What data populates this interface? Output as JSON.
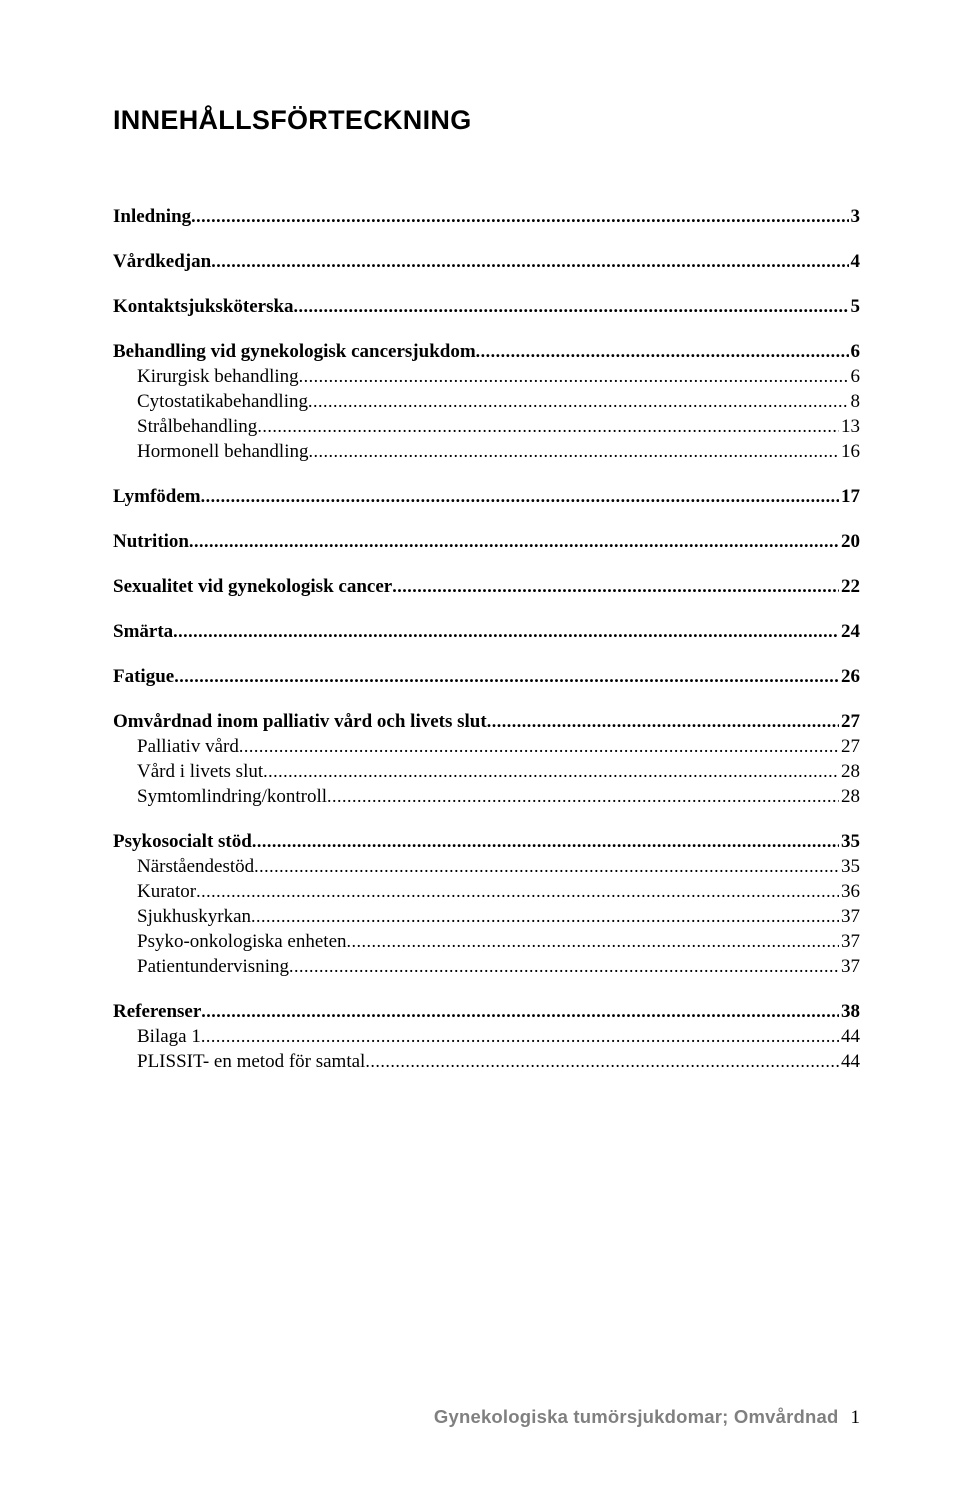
{
  "title": "INNEHÅLLSFÖRTECKNING",
  "toc": [
    {
      "level": 1,
      "label": "Inledning",
      "page": "3"
    },
    {
      "level": 1,
      "label": "Vårdkedjan",
      "page": "4"
    },
    {
      "level": 1,
      "label": "Kontaktsjuksköterska",
      "page": "5"
    },
    {
      "level": 1,
      "label": "Behandling vid gynekologisk cancersjukdom",
      "page": "6"
    },
    {
      "level": 2,
      "label": "Kirurgisk behandling",
      "page": "6"
    },
    {
      "level": 2,
      "label": "Cytostatikabehandling",
      "page": "8"
    },
    {
      "level": 2,
      "label": "Strålbehandling",
      "page": "13"
    },
    {
      "level": 2,
      "label": "Hormonell behandling",
      "page": "16"
    },
    {
      "level": 1,
      "label": "Lymfödem",
      "page": "17"
    },
    {
      "level": 1,
      "label": "Nutrition",
      "page": "20"
    },
    {
      "level": 1,
      "label": "Sexualitet vid gynekologisk cancer",
      "page": "22"
    },
    {
      "level": 1,
      "label": "Smärta",
      "page": "24"
    },
    {
      "level": 1,
      "label": "Fatigue",
      "page": "26"
    },
    {
      "level": 1,
      "label": "Omvårdnad inom palliativ vård och livets slut",
      "page": "27"
    },
    {
      "level": 2,
      "label": "Palliativ vård",
      "page": "27"
    },
    {
      "level": 2,
      "label": "Vård i livets slut",
      "page": "28"
    },
    {
      "level": 2,
      "label": "Symtomlindring/kontroll",
      "page": "28"
    },
    {
      "level": 1,
      "label": "Psykosocialt stöd",
      "page": "35"
    },
    {
      "level": 2,
      "label": "Närståendestöd",
      "page": "35"
    },
    {
      "level": 2,
      "label": "Kurator",
      "page": "36"
    },
    {
      "level": 2,
      "label": "Sjukhuskyrkan",
      "page": "37"
    },
    {
      "level": 2,
      "label": "Psyko-onkologiska enheten",
      "page": "37"
    },
    {
      "level": 2,
      "label": "Patientundervisning",
      "page": "37"
    },
    {
      "level": 1,
      "label": "Referenser",
      "page": "38"
    },
    {
      "level": 2,
      "label": "Bilaga 1",
      "page": "44"
    },
    {
      "level": 2,
      "label": "PLISSIT- en metod för samtal",
      "page": "44"
    }
  ],
  "footer": {
    "title": "Gynekologiska tumörsjukdomar; Omvårdnad",
    "page_number": "1"
  }
}
